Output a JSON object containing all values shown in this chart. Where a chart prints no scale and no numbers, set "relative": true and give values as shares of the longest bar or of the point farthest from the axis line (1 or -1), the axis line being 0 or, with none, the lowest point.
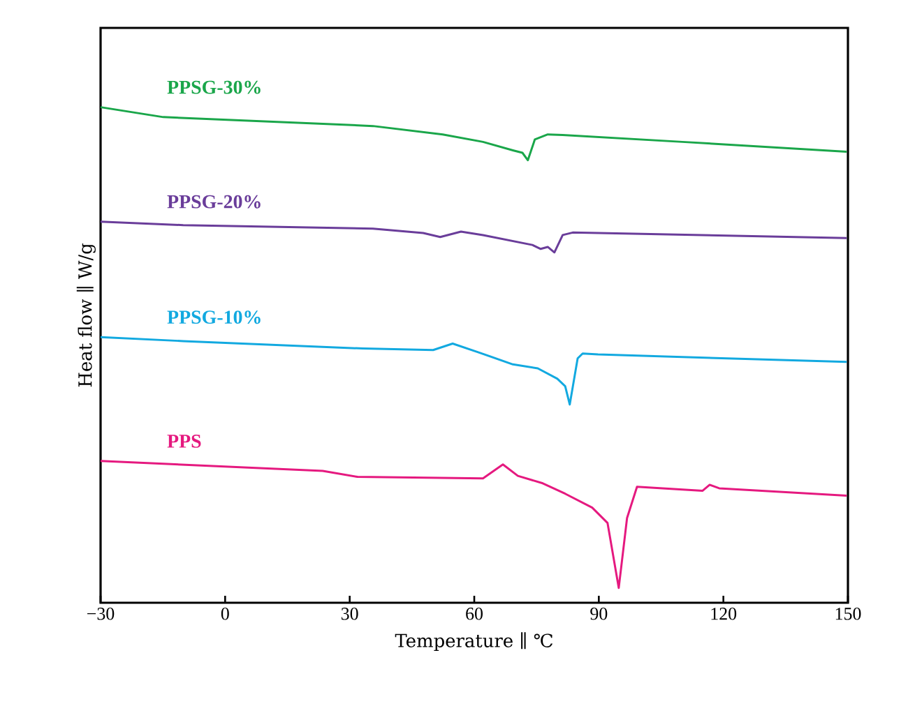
{
  "chart_data": {
    "type": "line",
    "relative": true,
    "xlabel": "Temperature ∥ ℃",
    "ylabel": "Heat flow ∥ W/g",
    "xlim": [
      -30,
      150
    ],
    "xticks": [
      {
        "value": -30,
        "label": "−30"
      },
      0,
      30,
      60,
      90,
      120,
      150
    ],
    "grid": false,
    "marker": "none",
    "line_style": "solid",
    "tick_labels": "x",
    "series": [
      {
        "name": "PPSG-30%",
        "color": "#1aa64a",
        "x": [
          -30,
          -14.9,
          35.6,
          52.4,
          62.1,
          69.3,
          71.6,
          72.9,
          74.6,
          77.7,
          81.3,
          110.1,
          149.7
        ],
        "values": [
          1.0,
          0.98,
          0.962,
          0.945,
          0.93,
          0.913,
          0.908,
          0.893,
          0.935,
          0.945,
          0.944,
          0.93,
          0.91
        ]
      },
      {
        "name": "PPSG-20%",
        "color": "#6a3d9a",
        "x": [
          -30,
          -10.1,
          35.6,
          47.7,
          51.8,
          56.8,
          62.1,
          74,
          76,
          77.7,
          79.3,
          81.3,
          83.7,
          149.7
        ],
        "values": [
          0.769,
          0.762,
          0.755,
          0.746,
          0.738,
          0.749,
          0.742,
          0.722,
          0.714,
          0.718,
          0.707,
          0.742,
          0.747,
          0.736
        ]
      },
      {
        "name": "PPSG-10%",
        "color": "#12a9e0",
        "x": [
          -30,
          -10.1,
          33.2,
          50.1,
          54.8,
          60.8,
          69.3,
          75.3,
          80,
          81.9,
          83,
          84.9,
          86.1,
          89.8,
          149.7
        ],
        "values": [
          0.536,
          0.528,
          0.513,
          0.51,
          0.523,
          0.506,
          0.481,
          0.473,
          0.452,
          0.437,
          0.4,
          0.493,
          0.503,
          0.501,
          0.486
        ]
      },
      {
        "name": "PPS",
        "color": "#e5197f",
        "x": [
          -30,
          23.5,
          31.9,
          62.1,
          66.9,
          70.5,
          76.5,
          81.9,
          88.4,
          92.1,
          94.8,
          96.8,
          99.2,
          115,
          116.7,
          119,
          149.7
        ],
        "values": [
          0.286,
          0.266,
          0.254,
          0.251,
          0.279,
          0.256,
          0.241,
          0.22,
          0.192,
          0.161,
          0.03,
          0.171,
          0.234,
          0.226,
          0.238,
          0.231,
          0.216
        ]
      }
    ]
  }
}
